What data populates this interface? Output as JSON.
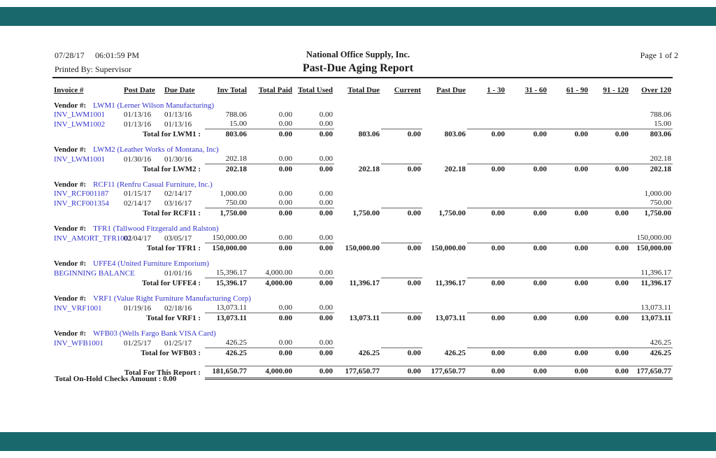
{
  "page": {
    "printed_date": "07/28/17",
    "printed_time": "06:01:59 PM",
    "printed_by": "Printed By: Supervisor",
    "company": "National Office Supply, Inc.",
    "report_title": "Past-Due Aging Report",
    "page_label": "Page 1 of 2",
    "on_hold_note": "Total On-Hold Checks Amount : 0.00"
  },
  "colors": {
    "accent_bar": "#17696c",
    "link_blue": "#3333cc",
    "text": "#1a1a1a"
  },
  "table": {
    "vendor_prefix": "Vendor #:",
    "columns": [
      "Invoice #",
      "Post Date",
      "Due Date",
      "Inv Total",
      "Total Paid",
      "Total Used",
      "Total Due",
      "Current",
      "Past Due",
      "1 - 30",
      "31 - 60",
      "61 - 90",
      "91 - 120",
      "Over 120"
    ],
    "sections": [
      {
        "vendor": "LWM1 (Lerner Wilson Manufacturing)",
        "rows": [
          [
            "INV_LWM1001",
            "01/13/16",
            "01/13/16",
            "788.06",
            "0.00",
            "0.00",
            "",
            "",
            "",
            "",
            "",
            "",
            "",
            "788.06"
          ],
          [
            "INV_LWM1002",
            "01/13/16",
            "01/13/16",
            "15.00",
            "0.00",
            "0.00",
            "",
            "",
            "",
            "",
            "",
            "",
            "",
            "15.00"
          ]
        ],
        "total_label": "Total for LWM1 :",
        "totals": [
          "803.06",
          "0.00",
          "0.00",
          "803.06",
          "0.00",
          "803.06",
          "0.00",
          "0.00",
          "0.00",
          "0.00",
          "803.06"
        ]
      },
      {
        "vendor": "LWM2 (Leather Works of Montana, Inc)",
        "rows": [
          [
            "INV_LWM1001",
            "01/30/16",
            "01/30/16",
            "202.18",
            "0.00",
            "0.00",
            "",
            "",
            "",
            "",
            "",
            "",
            "",
            "202.18"
          ]
        ],
        "total_label": "Total for LWM2 :",
        "totals": [
          "202.18",
          "0.00",
          "0.00",
          "202.18",
          "0.00",
          "202.18",
          "0.00",
          "0.00",
          "0.00",
          "0.00",
          "202.18"
        ]
      },
      {
        "vendor": "RCF11 (Renfru Casual Furniture, Inc.)",
        "rows": [
          [
            "INV_RCF001187",
            "01/15/17",
            "02/14/17",
            "1,000.00",
            "0.00",
            "0.00",
            "",
            "",
            "",
            "",
            "",
            "",
            "",
            "1,000.00"
          ],
          [
            "INV_RCF001354",
            "02/14/17",
            "03/16/17",
            "750.00",
            "0.00",
            "0.00",
            "",
            "",
            "",
            "",
            "",
            "",
            "",
            "750.00"
          ]
        ],
        "total_label": "Total for RCF11 :",
        "totals": [
          "1,750.00",
          "0.00",
          "0.00",
          "1,750.00",
          "0.00",
          "1,750.00",
          "0.00",
          "0.00",
          "0.00",
          "0.00",
          "1,750.00"
        ]
      },
      {
        "vendor": "TFR1 (Tallwood Fitzgerald and Ralston)",
        "rows": [
          [
            "INV_AMORT_TFR1001",
            "02/04/17",
            "03/05/17",
            "150,000.00",
            "0.00",
            "0.00",
            "",
            "",
            "",
            "",
            "",
            "",
            "",
            "150,000.00"
          ]
        ],
        "total_label": "Total for TFR1 :",
        "totals": [
          "150,000.00",
          "0.00",
          "0.00",
          "150,000.00",
          "0.00",
          "150,000.00",
          "0.00",
          "0.00",
          "0.00",
          "0.00",
          "150,000.00"
        ]
      },
      {
        "vendor": "UFFE4 (United Furniture Emporium)",
        "rows": [
          [
            "BEGINNING BALANCE",
            "",
            "01/01/16",
            "15,396.17",
            "4,000.00",
            "0.00",
            "",
            "",
            "",
            "",
            "",
            "",
            "",
            "11,396.17"
          ]
        ],
        "total_label": "Total for UFFE4 :",
        "totals": [
          "15,396.17",
          "4,000.00",
          "0.00",
          "11,396.17",
          "0.00",
          "11,396.17",
          "0.00",
          "0.00",
          "0.00",
          "0.00",
          "11,396.17"
        ]
      },
      {
        "vendor": "VRF1 (Value Right Furniture Manufacturing Corp)",
        "rows": [
          [
            "INV_VRF1001",
            "01/19/16",
            "02/18/16",
            "13,073.11",
            "0.00",
            "0.00",
            "",
            "",
            "",
            "",
            "",
            "",
            "",
            "13,073.11"
          ]
        ],
        "total_label": "Total for VRF1 :",
        "totals": [
          "13,073.11",
          "0.00",
          "0.00",
          "13,073.11",
          "0.00",
          "13,073.11",
          "0.00",
          "0.00",
          "0.00",
          "0.00",
          "13,073.11"
        ]
      },
      {
        "vendor": "WFB03 (Wells Fargo Bank VISA Card)",
        "rows": [
          [
            "INV_WFB1001",
            "01/25/17",
            "01/25/17",
            "426.25",
            "0.00",
            "0.00",
            "",
            "",
            "",
            "",
            "",
            "",
            "",
            "426.25"
          ]
        ],
        "total_label": "Total for WFB03 :",
        "totals": [
          "426.25",
          "0.00",
          "0.00",
          "426.25",
          "0.00",
          "426.25",
          "0.00",
          "0.00",
          "0.00",
          "0.00",
          "426.25"
        ]
      }
    ],
    "report_total_label": "Total For This Report :",
    "report_totals": [
      "181,650.77",
      "4,000.00",
      "0.00",
      "177,650.77",
      "0.00",
      "177,650.77",
      "0.00",
      "0.00",
      "0.00",
      "0.00",
      "177,650.77"
    ]
  }
}
